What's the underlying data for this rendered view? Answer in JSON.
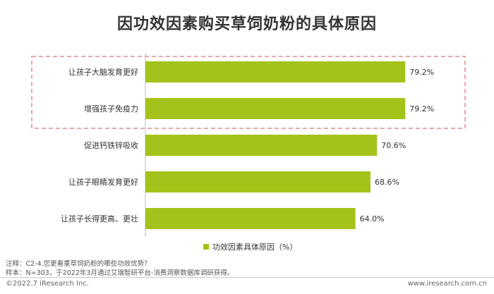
{
  "title": "因功效因素购买草饲奶粉的具体原因",
  "chart_data": {
    "type": "bar",
    "orientation": "horizontal",
    "categories": [
      "让孩子大脑发育更好",
      "增强孩子免疫力",
      "促进钙铁锌吸收",
      "让孩子眼睛发育更好",
      "让孩子长得更高、更壮"
    ],
    "series": [
      {
        "name": "功效因素具体原因（%）",
        "values": [
          79.2,
          79.2,
          70.6,
          68.6,
          64.0
        ]
      }
    ],
    "value_labels": [
      "79.2%",
      "79.2%",
      "70.6%",
      "68.6%",
      "64.0%"
    ],
    "xlim": [
      0,
      100
    ],
    "legend_position": "bottom",
    "grid": false,
    "highlighted_categories": [
      "让孩子大脑发育更好",
      "增强孩子免疫力"
    ],
    "bar_color": "#a4c31a",
    "highlight_box_color": "#e8858f"
  },
  "legend": {
    "label": "功效因素具体原因（%）"
  },
  "notes": {
    "line1": "注释：C2-4.您更看重草饲奶粉的哪些功效优势？",
    "line2": "样本：N=303，于2022年3月通过艾瑞智研平台-消费洞察数据库调研获得。"
  },
  "footer": {
    "left": "©2022.7 iResearch Inc.",
    "right": "www.iresearch.com.cn"
  }
}
